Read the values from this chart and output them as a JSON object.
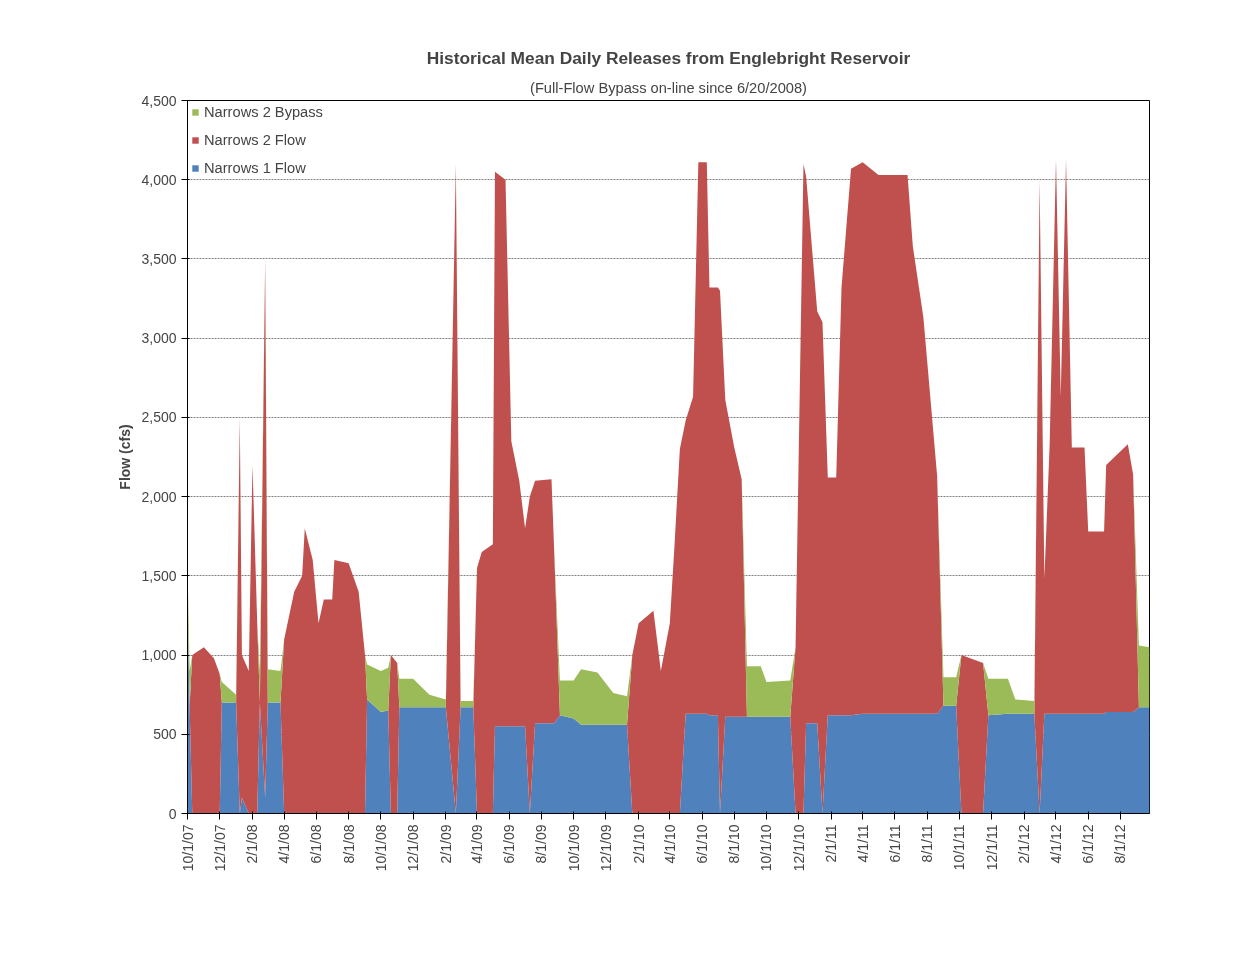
{
  "chart_data": {
    "type": "area",
    "stacked": true,
    "title": "Historical Mean Daily Releases from Englebright Reservoir",
    "subtitle": "(Full-Flow Bypass on-line since 6/20/2008)",
    "ylabel": "Flow (cfs)",
    "x": [
      "2007-10-01",
      "2007-10-05",
      "2007-10-10",
      "2007-11-01",
      "2007-11-20",
      "2007-12-01",
      "2007-12-05",
      "2008-01-01",
      "2008-01-08",
      "2008-01-12",
      "2008-01-25",
      "2008-02-01",
      "2008-02-10",
      "2008-02-15",
      "2008-02-25",
      "2008-03-01",
      "2008-03-25",
      "2008-04-01",
      "2008-04-20",
      "2008-05-05",
      "2008-05-10",
      "2008-05-25",
      "2008-06-05",
      "2008-06-15",
      "2008-07-01",
      "2008-07-05",
      "2008-08-01",
      "2008-08-20",
      "2008-09-01",
      "2008-09-05",
      "2008-10-01",
      "2008-10-15",
      "2008-10-20",
      "2008-11-01",
      "2008-11-05",
      "2008-12-01",
      "2009-01-01",
      "2009-02-01",
      "2009-02-20",
      "2009-03-01",
      "2009-03-25",
      "2009-04-01",
      "2009-04-10",
      "2009-05-01",
      "2009-05-05",
      "2009-05-25",
      "2009-06-05",
      "2009-06-20",
      "2009-07-01",
      "2009-07-10",
      "2009-07-20",
      "2009-08-20",
      "2009-08-25",
      "2009-09-05",
      "2009-10-01",
      "2009-10-15",
      "2009-11-15",
      "2009-12-15",
      "2010-01-10",
      "2010-01-20",
      "2010-02-01",
      "2010-03-01",
      "2010-03-15",
      "2010-04-01",
      "2010-04-10",
      "2010-04-20",
      "2010-05-01",
      "2010-05-15",
      "2010-05-25",
      "2010-06-10",
      "2010-06-15",
      "2010-07-01",
      "2010-07-05",
      "2010-07-15",
      "2010-08-01",
      "2010-08-15",
      "2010-08-25",
      "2010-09-20",
      "2010-10-01",
      "2010-11-15",
      "2010-11-25",
      "2010-12-10",
      "2010-12-15",
      "2011-01-05",
      "2011-01-15",
      "2011-01-25",
      "2011-02-10",
      "2011-02-20",
      "2011-03-10",
      "2011-04-01",
      "2011-05-01",
      "2011-06-25",
      "2011-07-05",
      "2011-07-25",
      "2011-08-20",
      "2011-09-01",
      "2011-09-25",
      "2011-10-05",
      "2011-11-15",
      "2011-11-25",
      "2012-01-01",
      "2012-01-15",
      "2012-02-20",
      "2012-03-01",
      "2012-03-10",
      "2012-03-20",
      "2012-04-01",
      "2012-04-10",
      "2012-04-20",
      "2012-05-01",
      "2012-05-25",
      "2012-06-01",
      "2012-07-01",
      "2012-07-05",
      "2012-08-15",
      "2012-08-25",
      "2012-09-05",
      "2012-09-25"
    ],
    "series": [
      {
        "name": "Narrows 1 Flow",
        "color": "#4f81bd",
        "values": [
          1350,
          680,
          0,
          0,
          0,
          0,
          700,
          700,
          0,
          100,
          0,
          0,
          0,
          700,
          100,
          700,
          700,
          0,
          0,
          0,
          0,
          0,
          0,
          0,
          0,
          0,
          0,
          0,
          0,
          720,
          640,
          650,
          0,
          0,
          670,
          670,
          670,
          670,
          0,
          670,
          670,
          0,
          0,
          0,
          550,
          550,
          550,
          550,
          550,
          0,
          570,
          570,
          570,
          620,
          600,
          560,
          560,
          560,
          560,
          0,
          0,
          0,
          0,
          0,
          0,
          0,
          630,
          630,
          630,
          630,
          620,
          620,
          0,
          610,
          610,
          610,
          610,
          610,
          610,
          610,
          0,
          0,
          570,
          570,
          0,
          620,
          620,
          620,
          620,
          630,
          630,
          630,
          630,
          630,
          630,
          680,
          680,
          0,
          0,
          620,
          630,
          630,
          630,
          0,
          630,
          630,
          630,
          630,
          630,
          630,
          630,
          630,
          630,
          640,
          640,
          640,
          670,
          670
        ]
      },
      {
        "name": "Narrows 2 Flow",
        "color": "#c0504d",
        "values": [
          0,
          0,
          1000,
          1050,
          980,
          880,
          0,
          0,
          2500,
          900,
          900,
          2200,
          1200,
          0,
          3400,
          0,
          0,
          1100,
          1400,
          1500,
          1800,
          1600,
          1200,
          1350,
          1350,
          1600,
          1580,
          1400,
          1000,
          0,
          0,
          0,
          1000,
          950,
          0,
          0,
          0,
          0,
          4100,
          0,
          0,
          1550,
          1650,
          1700,
          3500,
          3450,
          1800,
          1550,
          1250,
          2000,
          1530,
          1540,
          1100,
          0,
          0,
          0,
          0,
          0,
          0,
          1000,
          1200,
          1280,
          900,
          1200,
          1700,
          2300,
          1850,
          2000,
          3480,
          3480,
          2700,
          2700,
          3300,
          2000,
          1700,
          1500,
          0,
          0,
          0,
          0,
          1050,
          4100,
          3450,
          2600,
          3100,
          1500,
          1500,
          2700,
          3450,
          3480,
          3400,
          3400,
          2950,
          2500,
          1500,
          0,
          0,
          1000,
          950,
          0,
          0,
          0,
          0,
          4000,
          850,
          1700,
          3500,
          2000,
          3500,
          1680,
          1680,
          1150,
          1150,
          1560,
          1690,
          1500,
          0,
          0
        ]
      },
      {
        "name": "Narrows 2 Bypass",
        "color": "#9bbb59",
        "values": [
          230,
          220,
          0,
          0,
          0,
          0,
          130,
          50,
          0,
          0,
          0,
          0,
          0,
          200,
          0,
          210,
          200,
          0,
          0,
          0,
          0,
          0,
          0,
          0,
          0,
          0,
          0,
          0,
          0,
          220,
          260,
          270,
          0,
          0,
          180,
          180,
          80,
          50,
          0,
          40,
          40,
          0,
          0,
          0,
          0,
          0,
          0,
          0,
          0,
          0,
          0,
          0,
          0,
          220,
          240,
          350,
          330,
          200,
          180,
          0,
          0,
          0,
          0,
          0,
          0,
          0,
          0,
          0,
          0,
          0,
          0,
          0,
          0,
          0,
          0,
          0,
          320,
          320,
          220,
          230,
          0,
          0,
          0,
          0,
          0,
          0,
          0,
          0,
          0,
          0,
          0,
          0,
          0,
          0,
          0,
          180,
          180,
          0,
          0,
          230,
          220,
          90,
          80,
          0,
          0,
          0,
          0,
          0,
          0,
          0,
          0,
          0,
          0,
          0,
          0,
          0,
          390,
          380
        ]
      }
    ],
    "xlim": [
      "2007-10-01",
      "2012-09-25"
    ],
    "xticks": [
      {
        "value": "2007-10-01",
        "label": "10/1/07"
      },
      {
        "value": "2007-12-01",
        "label": "12/1/07"
      },
      {
        "value": "2008-02-01",
        "label": "2/1/08"
      },
      {
        "value": "2008-04-01",
        "label": "4/1/08"
      },
      {
        "value": "2008-06-01",
        "label": "6/1/08"
      },
      {
        "value": "2008-08-01",
        "label": "8/1/08"
      },
      {
        "value": "2008-10-01",
        "label": "10/1/08"
      },
      {
        "value": "2008-12-01",
        "label": "12/1/08"
      },
      {
        "value": "2009-02-01",
        "label": "2/1/09"
      },
      {
        "value": "2009-04-01",
        "label": "4/1/09"
      },
      {
        "value": "2009-06-01",
        "label": "6/1/09"
      },
      {
        "value": "2009-08-01",
        "label": "8/1/09"
      },
      {
        "value": "2009-10-01",
        "label": "10/1/09"
      },
      {
        "value": "2009-12-01",
        "label": "12/1/09"
      },
      {
        "value": "2010-02-01",
        "label": "2/1/10"
      },
      {
        "value": "2010-04-01",
        "label": "4/1/10"
      },
      {
        "value": "2010-06-01",
        "label": "6/1/10"
      },
      {
        "value": "2010-08-01",
        "label": "8/1/10"
      },
      {
        "value": "2010-10-01",
        "label": "10/1/10"
      },
      {
        "value": "2010-12-01",
        "label": "12/1/10"
      },
      {
        "value": "2011-02-01",
        "label": "2/1/11"
      },
      {
        "value": "2011-04-01",
        "label": "4/1/11"
      },
      {
        "value": "2011-06-01",
        "label": "6/1/11"
      },
      {
        "value": "2011-08-01",
        "label": "8/1/11"
      },
      {
        "value": "2011-10-01",
        "label": "10/1/11"
      },
      {
        "value": "2011-12-01",
        "label": "12/1/11"
      },
      {
        "value": "2012-02-01",
        "label": "2/1/12"
      },
      {
        "value": "2012-04-01",
        "label": "4/1/12"
      },
      {
        "value": "2012-06-01",
        "label": "6/1/12"
      },
      {
        "value": "2012-08-01",
        "label": "8/1/12"
      }
    ],
    "ylim": [
      0,
      4500
    ],
    "yticks": [
      {
        "value": 0,
        "label": "0"
      },
      {
        "value": 500,
        "label": "500"
      },
      {
        "value": 1000,
        "label": "1,000"
      },
      {
        "value": 1500,
        "label": "1,500"
      },
      {
        "value": 2000,
        "label": "2,000"
      },
      {
        "value": 2500,
        "label": "2,500"
      },
      {
        "value": 3000,
        "label": "3,000"
      },
      {
        "value": 3500,
        "label": "3,500"
      },
      {
        "value": 4000,
        "label": "4,000"
      },
      {
        "value": 4500,
        "label": "4,500"
      }
    ],
    "grid": "y",
    "legend": "top left"
  }
}
